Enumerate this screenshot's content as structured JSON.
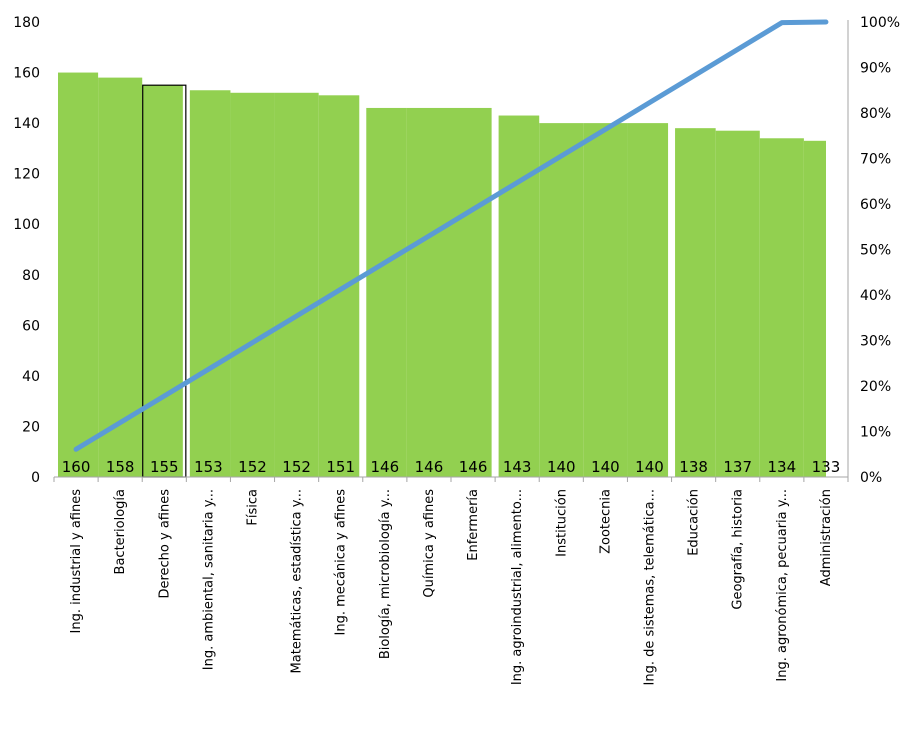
{
  "chart_data": {
    "type": "bar",
    "secondary_type": "line",
    "categories": [
      "Ing. industrial y afines",
      "Bacteriología",
      "Derecho y afines",
      "Ing. ambiental, sanitaria y...",
      "Física",
      "Matemáticas, estadística y...",
      "Ing. mecánica y afines",
      "Biología, microbiología y...",
      "Química y afines",
      "Enfermería",
      "Ing. agroindustrial, alimento...",
      "Institución",
      "Zootecnia",
      "Ing. de sistemas, telemática...",
      "Educación",
      "Geografía, historia",
      "Ing. agronómica, pecuaria y...",
      "Administración"
    ],
    "values": [
      160,
      158,
      155,
      153,
      152,
      152,
      151,
      146,
      146,
      146,
      143,
      140,
      140,
      140,
      138,
      137,
      134,
      133
    ],
    "data_labels": [
      "160",
      "158",
      "155",
      "153",
      "152",
      "152",
      "151",
      "146",
      "146",
      "146",
      "143",
      "140",
      "140",
      "140",
      "138",
      "137",
      "134",
      "133"
    ],
    "groups": [
      [
        0,
        1,
        2
      ],
      [
        3,
        4,
        5,
        6
      ],
      [
        7,
        8,
        9
      ],
      [
        10,
        11,
        12,
        13
      ],
      [
        14,
        15,
        16,
        17
      ]
    ],
    "highlighted_index": 2,
    "line_series": {
      "axis": "right",
      "values": [
        6.09,
        11.95,
        17.81,
        23.67,
        29.53,
        35.39,
        41.25,
        47.11,
        52.97,
        58.83,
        64.69,
        70.55,
        76.41,
        82.27,
        88.13,
        93.99,
        99.85,
        100
      ]
    },
    "y_left": {
      "ticks": [
        "0",
        "20",
        "40",
        "60",
        "80",
        "100",
        "120",
        "140",
        "160",
        "180"
      ],
      "ylim": [
        0,
        180
      ]
    },
    "y_right": {
      "ticks": [
        "0%",
        "10%",
        "20%",
        "30%",
        "40%",
        "50%",
        "60%",
        "70%",
        "80%",
        "90%",
        "100%"
      ],
      "ylim": [
        0,
        100
      ]
    },
    "title": "",
    "xlabel": "",
    "ylabel": "",
    "grid": false,
    "legend": "none",
    "colors": {
      "bar": "#92d050",
      "line": "#5b9bd5",
      "highlight_outline": "#000000",
      "axis": "#a6a6a6"
    }
  }
}
